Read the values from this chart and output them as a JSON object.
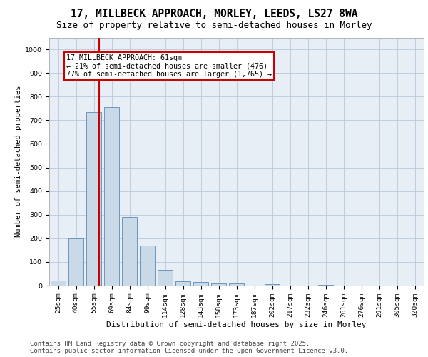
{
  "title_line1": "17, MILLBECK APPROACH, MORLEY, LEEDS, LS27 8WA",
  "title_line2": "Size of property relative to semi-detached houses in Morley",
  "xlabel": "Distribution of semi-detached houses by size in Morley",
  "ylabel": "Number of semi-detached properties",
  "categories": [
    "25sqm",
    "40sqm",
    "55sqm",
    "69sqm",
    "84sqm",
    "99sqm",
    "114sqm",
    "128sqm",
    "143sqm",
    "158sqm",
    "173sqm",
    "187sqm",
    "202sqm",
    "217sqm",
    "232sqm",
    "246sqm",
    "261sqm",
    "276sqm",
    "291sqm",
    "305sqm",
    "320sqm"
  ],
  "values": [
    20,
    200,
    735,
    755,
    290,
    170,
    65,
    18,
    14,
    10,
    8,
    0,
    5,
    0,
    0,
    3,
    0,
    0,
    0,
    0,
    0
  ],
  "bar_color": "#c9d9e8",
  "bar_edge_color": "#5a8ab5",
  "property_label": "17 MILLBECK APPROACH: 61sqm",
  "annotation_smaller": "← 21% of semi-detached houses are smaller (476)",
  "annotation_larger": "77% of semi-detached houses are larger (1,765) →",
  "vline_color": "#cc0000",
  "vline_position": 2.3,
  "annotation_box_color": "#cc0000",
  "ylim": [
    0,
    1050
  ],
  "yticks": [
    0,
    100,
    200,
    300,
    400,
    500,
    600,
    700,
    800,
    900,
    1000
  ],
  "grid_color": "#b8c8dc",
  "background_color": "#e8eef5",
  "footer_line1": "Contains HM Land Registry data © Crown copyright and database right 2025.",
  "footer_line2": "Contains public sector information licensed under the Open Government Licence v3.0.",
  "title_fontsize": 10.5,
  "subtitle_fontsize": 9,
  "annotation_fontsize": 7.2,
  "footer_fontsize": 6.5,
  "ylabel_fontsize": 7.5,
  "xlabel_fontsize": 8,
  "tick_fontsize": 6.8
}
